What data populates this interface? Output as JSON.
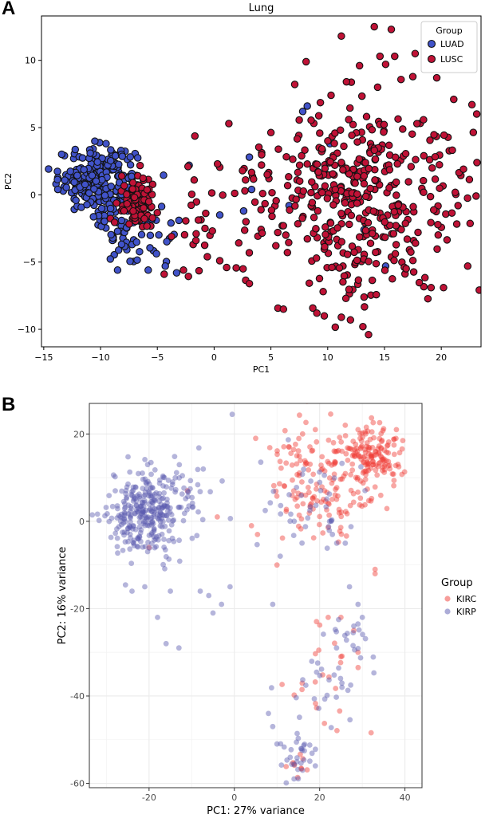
{
  "panels": {
    "a": "A",
    "b": "B"
  },
  "colors": {
    "luad": "#4153c9",
    "lusc": "#c01236",
    "edge": "#111111",
    "kirc": "#ef3b36",
    "kirp": "#5a5ab0",
    "gridB": "#ebebeb"
  },
  "chart_data": [
    {
      "type": "scatter",
      "title": "Lung",
      "xlabel": "PC1",
      "ylabel": "PC2",
      "xlim": [
        -15.2,
        23.5
      ],
      "ylim": [
        -11.3,
        13.3
      ],
      "xticks": [
        -15,
        -10,
        -5,
        0,
        5,
        10,
        15,
        20
      ],
      "yticks": [
        -10,
        -5,
        0,
        5,
        10
      ],
      "grid": false,
      "legend": {
        "title": "Group",
        "placement": "top-right",
        "entries": [
          "LUAD",
          "LUSC"
        ]
      },
      "series": [
        {
          "name": "LUAD",
          "clusters": [
            {
              "center": [
                -10.3,
                1.2
              ],
              "spread": [
                1.7,
                1.2
              ],
              "count": 230
            },
            {
              "center": [
                -7.2,
                -2.2
              ],
              "spread": [
                1.6,
                1.7
              ],
              "count": 80
            }
          ],
          "points": [
            [
              -4.3,
              -5.3
            ],
            [
              -3.3,
              -5.8
            ],
            [
              -5.8,
              -5.6
            ],
            [
              -3.1,
              -1.9
            ],
            [
              -2.2,
              2.2
            ],
            [
              0.5,
              -1.5
            ],
            [
              2.6,
              -1.2
            ],
            [
              3.1,
              2.8
            ],
            [
              3.3,
              0.4
            ],
            [
              6.6,
              -0.8
            ],
            [
              7.8,
              6.2
            ],
            [
              8.2,
              6.6
            ],
            [
              10.2,
              3.8
            ],
            [
              13.2,
              -2.6
            ],
            [
              15.1,
              -5.3
            ],
            [
              -8.5,
              -5.6
            ]
          ]
        },
        {
          "name": "LUSC",
          "clusters": [
            {
              "center": [
                -6.8,
                -0.6
              ],
              "spread": [
                0.8,
                0.9
              ],
              "count": 110
            },
            {
              "center": [
                12.3,
                -0.2
              ],
              "spread": [
                4.6,
                3.4
              ],
              "count": 430
            },
            {
              "center": [
                -1.5,
                -2.5
              ],
              "spread": [
                1.4,
                2.0
              ],
              "count": 20
            }
          ],
          "points": [
            [
              11.2,
              11.8
            ],
            [
              14.1,
              12.5
            ],
            [
              15.6,
              12.3
            ],
            [
              14.6,
              10.3
            ],
            [
              15.9,
              10.3
            ],
            [
              17.7,
              10.5
            ],
            [
              19.6,
              8.7
            ],
            [
              8.1,
              9.9
            ],
            [
              12.8,
              9.6
            ],
            [
              15.1,
              9.7
            ],
            [
              21.1,
              7.1
            ],
            [
              22.7,
              6.7
            ],
            [
              1.3,
              5.3
            ],
            [
              -2.3,
              2.1
            ],
            [
              0.3,
              2.3
            ],
            [
              2.5,
              1.8
            ],
            [
              5.1,
              -1.6
            ],
            [
              2.8,
              -2.0
            ],
            [
              3.1,
              -6.6
            ],
            [
              6.1,
              -8.5
            ],
            [
              9.7,
              -9.0
            ],
            [
              11.2,
              -9.1
            ],
            [
              12.0,
              -9.3
            ],
            [
              13.6,
              -10.4
            ],
            [
              13.1,
              -9.8
            ],
            [
              19.1,
              -6.9
            ],
            [
              20.2,
              -6.9
            ],
            [
              9.6,
              -7.2
            ],
            [
              11.6,
              -7.7
            ],
            [
              13.2,
              -7.6
            ],
            [
              -0.6,
              -4.6
            ],
            [
              0.5,
              -4.9
            ],
            [
              1.1,
              -5.4
            ],
            [
              -1.6,
              -3.4
            ],
            [
              -2.7,
              -5.6
            ],
            [
              -4.4,
              -5.9
            ]
          ]
        }
      ]
    },
    {
      "type": "scatter",
      "title": "",
      "xlabel": "PC1: 27% variance",
      "ylabel": "PC2: 16% variance",
      "xlim": [
        -34,
        44
      ],
      "ylim": [
        -61,
        27
      ],
      "xticks": [
        -20,
        0,
        20,
        40
      ],
      "yticks": [
        -60,
        -40,
        -20,
        0,
        20
      ],
      "grid": true,
      "legend": {
        "title": "Group",
        "placement": "right",
        "entries": [
          "KIRC",
          "KIRP"
        ]
      },
      "series": [
        {
          "name": "KIRC",
          "clusters": [
            {
              "center": [
                32,
                15
              ],
              "spread": [
                3.5,
                3.2
              ],
              "count": 140
            },
            {
              "center": [
                21,
                8
              ],
              "spread": [
                7.0,
                6.5
              ],
              "count": 160
            },
            {
              "center": [
                20,
                -37
              ],
              "spread": [
                3.5,
                6
              ],
              "count": 22
            },
            {
              "center": [
                15,
                -56
              ],
              "spread": [
                1.5,
                1.5
              ],
              "count": 10
            }
          ],
          "points": [
            [
              39.5,
              18.5
            ],
            [
              38,
              21
            ],
            [
              29,
              21
            ],
            [
              26,
              22
            ],
            [
              19,
              21
            ],
            [
              16,
              20
            ],
            [
              5,
              19
            ],
            [
              -11,
              7
            ],
            [
              -20,
              -6
            ],
            [
              -4,
              1
            ],
            [
              4,
              -1
            ],
            [
              10,
              -10
            ],
            [
              33,
              -11
            ],
            [
              33,
              -12
            ],
            [
              29,
              -30
            ],
            [
              25,
              -31
            ],
            [
              25,
              -22
            ],
            [
              22,
              -22
            ],
            [
              28,
              -25
            ]
          ]
        },
        {
          "name": "KIRP",
          "clusters": [
            {
              "center": [
                -21,
                2
              ],
              "spread": [
                4.5,
                5.0
              ],
              "count": 280
            },
            {
              "center": [
                -14,
                6
              ],
              "spread": [
                4.5,
                5.5
              ],
              "count": 50
            },
            {
              "center": [
                15,
                -54
              ],
              "spread": [
                2.2,
                3.2
              ],
              "count": 30
            },
            {
              "center": [
                20,
                -38
              ],
              "spread": [
                4,
                6
              ],
              "count": 25
            },
            {
              "center": [
                27,
                -28
              ],
              "spread": [
                2.5,
                3
              ],
              "count": 18
            },
            {
              "center": [
                17,
                6
              ],
              "spread": [
                7,
                7
              ],
              "count": 45
            }
          ],
          "points": [
            [
              -0.5,
              24.5
            ],
            [
              -8,
              -16
            ],
            [
              -6,
              -17
            ],
            [
              -1,
              -15
            ],
            [
              -3,
              -19
            ],
            [
              -5,
              -21
            ],
            [
              -16,
              -28
            ],
            [
              -13,
              -29
            ],
            [
              -18,
              -22
            ],
            [
              -15,
              -16
            ],
            [
              -21,
              -15
            ],
            [
              -24,
              -16
            ],
            [
              9,
              -19
            ],
            [
              27,
              -15
            ],
            [
              26,
              -5
            ],
            [
              24,
              -5
            ],
            [
              23,
              -3
            ],
            [
              29,
              -19
            ],
            [
              30,
              -22
            ],
            [
              28,
              -24
            ],
            [
              9,
              -47
            ],
            [
              8,
              -44
            ],
            [
              10,
              -51
            ],
            [
              16,
              -57
            ],
            [
              19,
              -56
            ],
            [
              14,
              -59
            ]
          ]
        }
      ]
    }
  ]
}
